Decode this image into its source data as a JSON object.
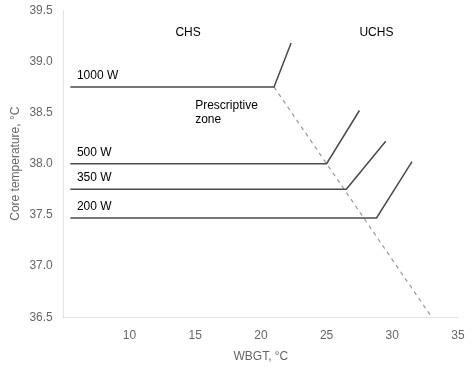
{
  "chart_data": {
    "type": "line",
    "xlabel": "WBGT, °C",
    "ylabel": "Core temperature, °C",
    "xlim": [
      5,
      35
    ],
    "ylim": [
      36.5,
      39.5
    ],
    "xticks": [
      10,
      15,
      20,
      25,
      30,
      35
    ],
    "yticks": [
      36.5,
      {
        "value": 37.0,
        "label": "37.0"
      },
      37.5,
      {
        "value": 38.0,
        "label": "38.0"
      },
      38.5,
      {
        "value": 39.0,
        "label": "39.0"
      },
      39.5
    ],
    "grid": false,
    "series": [
      {
        "x": [
          5.5,
          21.0,
          22.3
        ],
        "values": [
          38.75,
          38.75,
          39.18
        ],
        "color": "#4a4a4a",
        "line_style": "solid"
      },
      {
        "x": [
          5.5,
          25.0,
          27.5
        ],
        "values": [
          38.0,
          38.0,
          38.52
        ],
        "color": "#4a4a4a",
        "line_style": "solid"
      },
      {
        "x": [
          5.5,
          26.5,
          29.5
        ],
        "values": [
          37.75,
          37.75,
          38.22
        ],
        "color": "#4a4a4a",
        "line_style": "solid"
      },
      {
        "x": [
          5.5,
          28.8,
          31.5
        ],
        "values": [
          37.47,
          37.47,
          38.02
        ],
        "color": "#4a4a4a",
        "line_style": "solid"
      },
      {
        "x": [
          21.0,
          33.0
        ],
        "values": [
          38.75,
          36.5
        ],
        "color": "#999999",
        "line_style": "dashed"
      }
    ],
    "annotations": [
      {
        "text": "1000 W",
        "x": 6.0,
        "y": 38.8
      },
      {
        "text": "500 W",
        "x": 6.0,
        "y": 38.05
      },
      {
        "text": "350 W",
        "x": 6.0,
        "y": 37.8
      },
      {
        "text": "200 W",
        "x": 6.0,
        "y": 37.52
      },
      {
        "text": "CHS",
        "x": 13.5,
        "y": 39.22
      },
      {
        "text": "UCHS",
        "x": 27.5,
        "y": 39.22
      },
      {
        "text": "Prescriptive\nzone",
        "x": 15.0,
        "y": 38.37
      }
    ]
  }
}
